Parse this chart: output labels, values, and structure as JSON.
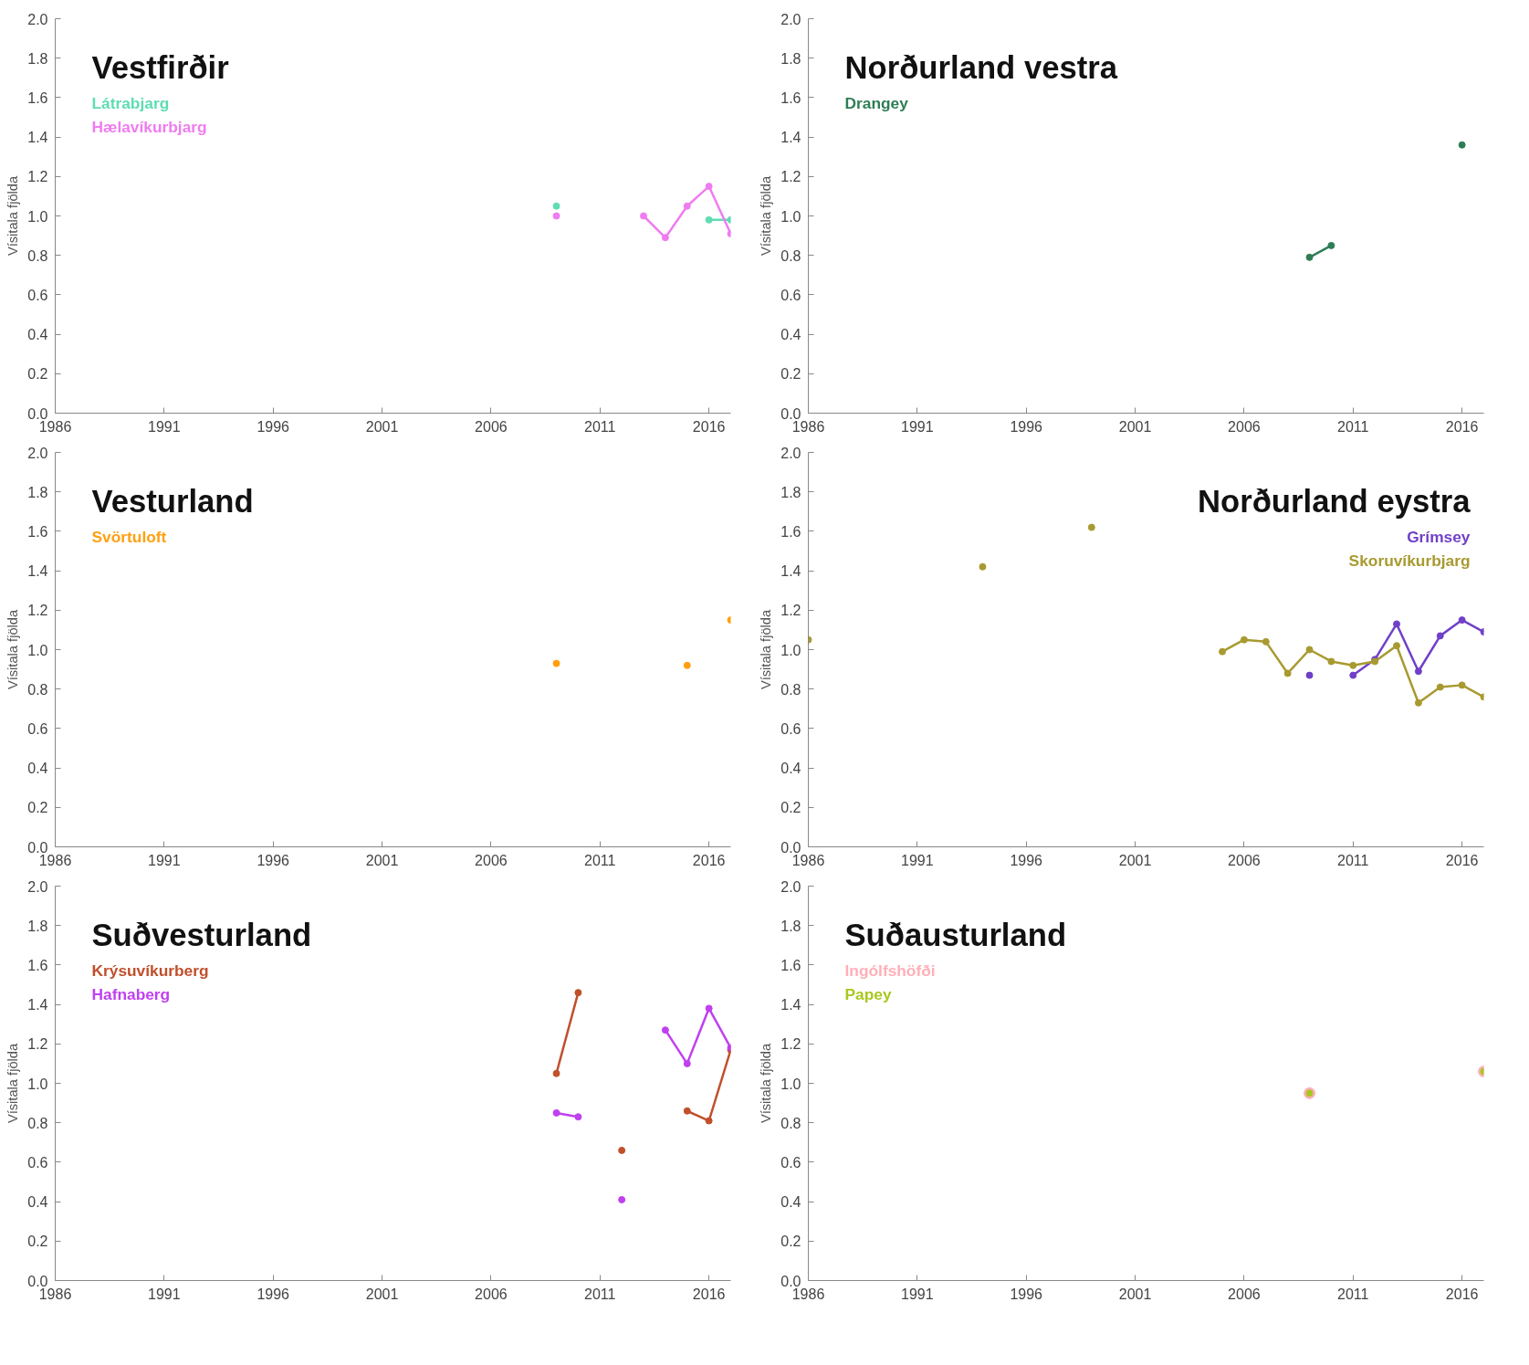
{
  "chart_data": [
    {
      "type": "line",
      "title": "Vestfirðir",
      "ylabel": "Vísitala fjölda",
      "legend": "top left",
      "grid": false,
      "marker": "circle",
      "line_style": "solid",
      "xlim": [
        1986,
        2017
      ],
      "ylim": [
        0,
        2
      ],
      "xticks": [
        1986,
        1991,
        1996,
        2001,
        2006,
        2011,
        2016
      ],
      "yticks": [
        {
          "value": 0,
          "label": "0.0"
        },
        0.2,
        0.4,
        0.6,
        0.8,
        {
          "value": 1,
          "label": "1.0"
        },
        1.2,
        1.4,
        1.6,
        1.8,
        {
          "value": 2,
          "label": "2.0"
        }
      ],
      "series": [
        {
          "name": "Látrabjarg",
          "color": "#5fdcb4",
          "x": [
            2009,
            2010,
            2011,
            2012,
            2013,
            2014,
            2015,
            2016,
            2017
          ],
          "values": [
            1.05,
            null,
            null,
            null,
            null,
            null,
            null,
            0.98,
            0.98
          ]
        },
        {
          "name": "Hælavíkurbjarg",
          "color": "#f07cf0",
          "x": [
            2009,
            2010,
            2011,
            2012,
            2013,
            2014,
            2015,
            2016,
            2017
          ],
          "values": [
            1.0,
            null,
            null,
            null,
            1.0,
            0.89,
            1.05,
            1.15,
            0.91
          ]
        }
      ]
    },
    {
      "type": "line",
      "title": "Norðurland vestra",
      "ylabel": "Vísitala fjölda",
      "legend": "top left",
      "grid": false,
      "marker": "circle",
      "line_style": "solid",
      "xlim": [
        1986,
        2017
      ],
      "ylim": [
        0,
        2
      ],
      "xticks": [
        1986,
        1991,
        1996,
        2001,
        2006,
        2011,
        2016
      ],
      "yticks": [
        {
          "value": 0,
          "label": "0.0"
        },
        0.2,
        0.4,
        0.6,
        0.8,
        {
          "value": 1,
          "label": "1.0"
        },
        1.2,
        1.4,
        1.6,
        1.8,
        {
          "value": 2,
          "label": "2.0"
        }
      ],
      "series": [
        {
          "name": "Drangey",
          "color": "#2e7d55",
          "x": [
            2009,
            2010,
            2011,
            2012,
            2013,
            2014,
            2015,
            2016
          ],
          "values": [
            0.79,
            0.85,
            null,
            null,
            null,
            null,
            null,
            1.36
          ]
        }
      ]
    },
    {
      "type": "line",
      "title": "Vesturland",
      "ylabel": "Vísitala fjölda",
      "legend": "top left",
      "grid": false,
      "marker": "circle",
      "xlim": [
        1986,
        2017
      ],
      "ylim": [
        0,
        2
      ],
      "xticks": [
        1986,
        1991,
        1996,
        2001,
        2006,
        2011,
        2016
      ],
      "yticks": [
        {
          "value": 0,
          "label": "0.0"
        },
        0.2,
        0.4,
        0.6,
        0.8,
        {
          "value": 1,
          "label": "1.0"
        },
        1.2,
        1.4,
        1.6,
        1.8,
        {
          "value": 2,
          "label": "2.0"
        }
      ],
      "series": [
        {
          "name": "Svörtuloft",
          "type": "scatter",
          "color": "#ffa010",
          "x": [
            2009,
            2010,
            2011,
            2012,
            2013,
            2014,
            2015,
            2016,
            2017
          ],
          "values": [
            0.93,
            null,
            null,
            null,
            null,
            null,
            0.92,
            null,
            1.15
          ]
        }
      ]
    },
    {
      "type": "line",
      "title": "Norðurland eystra",
      "ylabel": "Vísitala fjölda",
      "legend": "top right",
      "grid": false,
      "marker": "circle",
      "line_style": "solid",
      "xlim": [
        1986,
        2017
      ],
      "ylim": [
        0,
        2
      ],
      "xticks": [
        1986,
        1991,
        1996,
        2001,
        2006,
        2011,
        2016
      ],
      "yticks": [
        {
          "value": 0,
          "label": "0.0"
        },
        0.2,
        0.4,
        0.6,
        0.8,
        {
          "value": 1,
          "label": "1.0"
        },
        1.2,
        1.4,
        1.6,
        1.8,
        {
          "value": 2,
          "label": "2.0"
        }
      ],
      "series": [
        {
          "name": "Grímsey",
          "color": "#7040c8",
          "x": [
            2009,
            2010,
            2011,
            2012,
            2013,
            2014,
            2015,
            2016,
            2017
          ],
          "values": [
            0.87,
            null,
            0.87,
            0.95,
            1.13,
            0.89,
            1.07,
            1.15,
            1.09
          ]
        },
        {
          "name": "Skoruvíkurbjarg",
          "color": "#a89a30",
          "x": [
            1986,
            1987,
            1994,
            1995,
            1999,
            2000,
            2005,
            2006,
            2007,
            2008,
            2009,
            2010,
            2011,
            2012,
            2013,
            2014,
            2015,
            2016,
            2017
          ],
          "values": [
            1.05,
            null,
            1.42,
            null,
            1.62,
            null,
            0.99,
            1.05,
            1.04,
            0.88,
            1.0,
            0.94,
            0.92,
            0.94,
            1.02,
            0.73,
            0.81,
            0.82,
            0.76
          ]
        }
      ]
    },
    {
      "type": "line",
      "title": "Suðvesturland",
      "ylabel": "Vísitala fjölda",
      "legend": "top left",
      "grid": false,
      "marker": "circle",
      "line_style": "solid",
      "xlim": [
        1986,
        2017
      ],
      "ylim": [
        0,
        2
      ],
      "xticks": [
        1986,
        1991,
        1996,
        2001,
        2006,
        2011,
        2016
      ],
      "yticks": [
        {
          "value": 0,
          "label": "0.0"
        },
        0.2,
        0.4,
        0.6,
        0.8,
        {
          "value": 1,
          "label": "1.0"
        },
        1.2,
        1.4,
        1.6,
        1.8,
        {
          "value": 2,
          "label": "2.0"
        }
      ],
      "series": [
        {
          "name": "Krýsuvíkurberg",
          "color": "#c0502c",
          "x": [
            2009,
            2010,
            2011,
            2012,
            2013,
            2014,
            2015,
            2016,
            2017
          ],
          "values": [
            1.05,
            1.46,
            null,
            0.66,
            null,
            null,
            0.86,
            0.81,
            1.17
          ]
        },
        {
          "name": "Hafnaberg",
          "color": "#c040f0",
          "x": [
            2009,
            2010,
            2011,
            2012,
            2013,
            2014,
            2015,
            2016,
            2017
          ],
          "values": [
            0.85,
            0.83,
            null,
            0.41,
            null,
            1.27,
            1.1,
            1.38,
            1.18
          ]
        }
      ]
    },
    {
      "type": "line",
      "title": "Suðausturland",
      "ylabel": "Vísitala fjölda",
      "legend": "top left",
      "grid": false,
      "marker": "circle",
      "xlim": [
        1986,
        2017
      ],
      "ylim": [
        0,
        2
      ],
      "xticks": [
        1986,
        1991,
        1996,
        2001,
        2006,
        2011,
        2016
      ],
      "yticks": [
        {
          "value": 0,
          "label": "0.0"
        },
        0.2,
        0.4,
        0.6,
        0.8,
        {
          "value": 1,
          "label": "1.0"
        },
        1.2,
        1.4,
        1.6,
        1.8,
        {
          "value": 2,
          "label": "2.0"
        }
      ],
      "series": [
        {
          "name": "Ingólfshöfði",
          "type": "scatter",
          "color": "#ffb0b8",
          "x": [
            2009,
            2010,
            2011,
            2012,
            2013,
            2014,
            2015,
            2016,
            2017
          ],
          "values": [
            0.95,
            null,
            null,
            null,
            null,
            null,
            null,
            null,
            1.06
          ]
        },
        {
          "name": "Papey",
          "type": "scatter",
          "color": "#a8c820",
          "x": [
            2009,
            2010,
            2011,
            2012,
            2013,
            2014,
            2015,
            2016,
            2017
          ],
          "values": [
            0.95,
            null,
            null,
            null,
            null,
            null,
            null,
            null,
            1.06
          ]
        }
      ]
    }
  ]
}
